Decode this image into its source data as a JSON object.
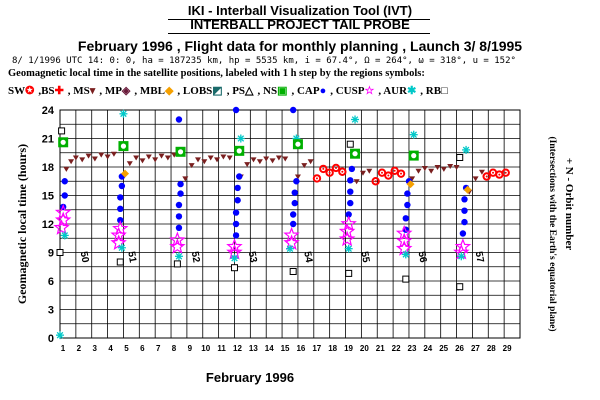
{
  "header": {
    "line1": "IKI - Interball Visualization Tool (IVT)",
    "line2": "INTERBALL PROJECT TAIL PROBE",
    "line3": "February 1996 ,  Flight data for monthly planning ,   Launch  3/ 8/1995",
    "line4": "8/ 1/1996 UTC 14: 0: 0, ha = 187235 km, hp =   5535 km, i = 67.4°, Ω = 264°, ω = 318°, u = 152°",
    "line5": "Geomagnetic local time in the satellite positions, labeled with 1 h step by the regions symbols:"
  },
  "legend": [
    {
      "label": "SW",
      "symbol": "✪",
      "color": "#ff0000"
    },
    {
      "label": ",BS",
      "symbol": "✚",
      "color": "#ff0000"
    },
    {
      "label": ", MS",
      "symbol": "▾",
      "color": "#7a1f1f"
    },
    {
      "label": ", MP",
      "symbol": "◈",
      "color": "#6a1a3a"
    },
    {
      "label": ", MBL",
      "symbol": "◆",
      "color": "#f5a000"
    },
    {
      "label": ", LOBS",
      "symbol": "◩",
      "color": "#1a6a6a"
    },
    {
      "label": ", PS",
      "symbol": "△",
      "color": "#000000"
    },
    {
      "label": ", NS",
      "symbol": "▣",
      "color": "#00b000"
    },
    {
      "label": ", CAP",
      "symbol": "●",
      "color": "#0000ff"
    },
    {
      "label": ", CUSP",
      "symbol": "☆",
      "color": "#ff00ff"
    },
    {
      "label": ", AUR",
      "symbol": "✱",
      "color": "#00c8c8"
    },
    {
      "label": ", RB",
      "symbol": "□",
      "color": "#000000"
    }
  ],
  "chart_data": {
    "type": "scatter",
    "xlabel": "February 1996",
    "ylabel": "Geomagnetic local time (hours)",
    "right_label_line1": "+ N - Orbit number",
    "right_label_line2": "(Intersections with the Earth's equatorial plane)",
    "xlim": [
      1,
      30
    ],
    "ylim": [
      0,
      24
    ],
    "x_ticks": [
      1,
      2,
      3,
      4,
      5,
      6,
      7,
      8,
      9,
      10,
      11,
      12,
      13,
      14,
      15,
      16,
      17,
      18,
      19,
      20,
      21,
      22,
      23,
      24,
      25,
      26,
      27,
      28,
      29
    ],
    "y_ticks": [
      0,
      3,
      6,
      9,
      12,
      15,
      18,
      21,
      24
    ],
    "grid": true,
    "orbit_labels": [
      {
        "day": 2.3,
        "text": "50"
      },
      {
        "day": 5.3,
        "text": "51"
      },
      {
        "day": 9.3,
        "text": "52"
      },
      {
        "day": 12.9,
        "text": "53"
      },
      {
        "day": 16.4,
        "text": "54"
      },
      {
        "day": 20.0,
        "text": "55"
      },
      {
        "day": 23.6,
        "text": "56"
      },
      {
        "day": 27.2,
        "text": "57"
      }
    ],
    "orbits": [
      {
        "start": 1.0,
        "end": 4.8
      },
      {
        "start": 4.8,
        "end": 8.45
      },
      {
        "start": 8.45,
        "end": 12.0
      },
      {
        "start": 12.0,
        "end": 15.6
      },
      {
        "start": 15.6,
        "end": 19.2
      },
      {
        "start": 19.2,
        "end": 22.8
      },
      {
        "start": 22.8,
        "end": 26.4
      },
      {
        "start": 26.4,
        "end": 29.0
      }
    ],
    "series": [
      {
        "name": "MS",
        "color": "#7a1f1f",
        "points": [
          [
            1.4,
            17.8
          ],
          [
            1.7,
            18.6
          ],
          [
            2.0,
            19.0
          ],
          [
            2.4,
            18.8
          ],
          [
            2.8,
            19.2
          ],
          [
            3.2,
            18.9
          ],
          [
            3.6,
            19.3
          ],
          [
            4.0,
            19.1
          ],
          [
            4.4,
            19.4
          ],
          [
            5.0,
            17.0
          ],
          [
            5.4,
            18.4
          ],
          [
            5.8,
            19.0
          ],
          [
            6.2,
            18.7
          ],
          [
            6.6,
            19.1
          ],
          [
            7.0,
            18.8
          ],
          [
            7.4,
            19.2
          ],
          [
            7.8,
            19.0
          ],
          [
            8.2,
            19.3
          ],
          [
            8.9,
            16.8
          ],
          [
            9.3,
            18.2
          ],
          [
            9.7,
            18.8
          ],
          [
            10.1,
            18.6
          ],
          [
            10.5,
            19.0
          ],
          [
            10.9,
            18.8
          ],
          [
            11.3,
            19.1
          ],
          [
            11.7,
            19.0
          ],
          [
            12.4,
            17.0
          ],
          [
            12.8,
            18.3
          ],
          [
            13.2,
            18.8
          ],
          [
            13.6,
            18.6
          ],
          [
            14.0,
            18.9
          ],
          [
            14.4,
            18.7
          ],
          [
            14.8,
            19.0
          ],
          [
            15.2,
            18.9
          ],
          [
            16.0,
            17.0
          ],
          [
            16.4,
            18.2
          ],
          [
            16.8,
            18.6
          ],
          [
            19.7,
            16.5
          ],
          [
            20.1,
            17.4
          ],
          [
            20.5,
            17.6
          ],
          [
            23.2,
            16.8
          ],
          [
            23.6,
            17.6
          ],
          [
            24.0,
            17.9
          ],
          [
            24.4,
            17.6
          ],
          [
            24.8,
            18.0
          ],
          [
            25.2,
            17.8
          ],
          [
            25.6,
            18.1
          ],
          [
            26.0,
            18.0
          ],
          [
            26.8,
            15.4
          ],
          [
            27.2,
            16.8
          ],
          [
            27.6,
            17.5
          ]
        ]
      },
      {
        "name": "SW",
        "color": "#ff0000",
        "points": [
          [
            17.2,
            16.8
          ],
          [
            17.6,
            17.8
          ],
          [
            18.0,
            17.4
          ],
          [
            18.4,
            17.9
          ],
          [
            18.8,
            17.5
          ],
          [
            20.9,
            16.5
          ],
          [
            21.3,
            17.4
          ],
          [
            21.7,
            17.1
          ],
          [
            22.1,
            17.6
          ],
          [
            22.5,
            17.3
          ],
          [
            27.9,
            17.0
          ],
          [
            28.3,
            17.4
          ],
          [
            28.7,
            17.2
          ],
          [
            29.1,
            17.4
          ]
        ]
      },
      {
        "name": "CAP",
        "color": "#0000ff",
        "points": [
          [
            1.3,
            16.5
          ],
          [
            1.3,
            15.0
          ],
          [
            1.2,
            13.8
          ],
          [
            4.9,
            17.0
          ],
          [
            4.9,
            16.0
          ],
          [
            4.8,
            14.8
          ],
          [
            4.8,
            13.6
          ],
          [
            4.8,
            12.4
          ],
          [
            8.5,
            23.0
          ],
          [
            8.6,
            16.2
          ],
          [
            8.6,
            15.2
          ],
          [
            8.5,
            14.0
          ],
          [
            8.5,
            12.8
          ],
          [
            8.5,
            11.6
          ],
          [
            12.1,
            24.0
          ],
          [
            12.3,
            17.0
          ],
          [
            12.2,
            15.8
          ],
          [
            12.2,
            14.5
          ],
          [
            12.1,
            13.2
          ],
          [
            12.1,
            12.0
          ],
          [
            12.1,
            10.8
          ],
          [
            15.7,
            24.0
          ],
          [
            15.9,
            16.5
          ],
          [
            15.8,
            15.3
          ],
          [
            15.8,
            14.2
          ],
          [
            15.7,
            13.0
          ],
          [
            15.7,
            12.0
          ],
          [
            19.4,
            17.8
          ],
          [
            19.3,
            16.6
          ],
          [
            19.3,
            15.4
          ],
          [
            19.3,
            14.2
          ],
          [
            19.2,
            13.0
          ],
          [
            23.0,
            16.5
          ],
          [
            22.9,
            15.2
          ],
          [
            22.9,
            14.0
          ],
          [
            22.8,
            12.6
          ],
          [
            22.8,
            11.4
          ],
          [
            26.6,
            15.8
          ],
          [
            26.5,
            14.6
          ],
          [
            26.5,
            13.4
          ],
          [
            26.5,
            12.2
          ],
          [
            26.4,
            11.0
          ]
        ]
      },
      {
        "name": "CUSP",
        "color": "#ff00ff",
        "points": [
          [
            1.2,
            13.2
          ],
          [
            1.2,
            12.4
          ],
          [
            1.1,
            11.6
          ],
          [
            4.8,
            11.5
          ],
          [
            4.7,
            10.8
          ],
          [
            4.7,
            10.0
          ],
          [
            8.4,
            10.3
          ],
          [
            8.4,
            9.6
          ],
          [
            12.0,
            9.6
          ],
          [
            12.0,
            9.0
          ],
          [
            15.6,
            10.8
          ],
          [
            15.6,
            10.0
          ],
          [
            19.2,
            12.0
          ],
          [
            19.1,
            11.2
          ],
          [
            19.1,
            10.4
          ],
          [
            22.7,
            11.0
          ],
          [
            22.7,
            10.2
          ],
          [
            22.7,
            9.4
          ],
          [
            26.4,
            9.6
          ],
          [
            26.3,
            9.0
          ]
        ]
      },
      {
        "name": "AUR",
        "color": "#00c8c8",
        "points": [
          [
            1.0,
            0.3
          ],
          [
            1.3,
            10.8
          ],
          [
            5.0,
            23.6
          ],
          [
            4.9,
            9.5
          ],
          [
            8.5,
            8.6
          ],
          [
            12.4,
            21.0
          ],
          [
            12.0,
            8.4
          ],
          [
            15.9,
            21.0
          ],
          [
            15.5,
            9.4
          ],
          [
            19.6,
            23.0
          ],
          [
            19.2,
            9.4
          ],
          [
            23.3,
            21.4
          ],
          [
            22.8,
            8.8
          ],
          [
            26.6,
            19.8
          ],
          [
            26.3,
            8.6
          ]
        ]
      },
      {
        "name": "NS",
        "color": "#00b000",
        "points": [
          [
            1.2,
            20.6
          ],
          [
            5.0,
            20.2
          ],
          [
            8.6,
            19.6
          ],
          [
            12.3,
            19.7
          ],
          [
            16.0,
            20.4
          ],
          [
            19.6,
            19.4
          ],
          [
            23.3,
            19.2
          ]
        ]
      },
      {
        "name": "RB",
        "color": "#000000",
        "points": [
          [
            1.1,
            21.8
          ],
          [
            1.0,
            9.0
          ],
          [
            4.8,
            8.0
          ],
          [
            8.4,
            7.8
          ],
          [
            12.0,
            7.4
          ],
          [
            15.7,
            7.0
          ],
          [
            19.3,
            20.4
          ],
          [
            19.2,
            6.8
          ],
          [
            22.8,
            6.2
          ],
          [
            26.2,
            5.4
          ],
          [
            26.2,
            19.0
          ]
        ]
      },
      {
        "name": "MBL",
        "color": "#f5a000",
        "points": [
          [
            5.1,
            17.3
          ],
          [
            26.7,
            15.6
          ],
          [
            23.1,
            16.2
          ]
        ]
      }
    ]
  }
}
